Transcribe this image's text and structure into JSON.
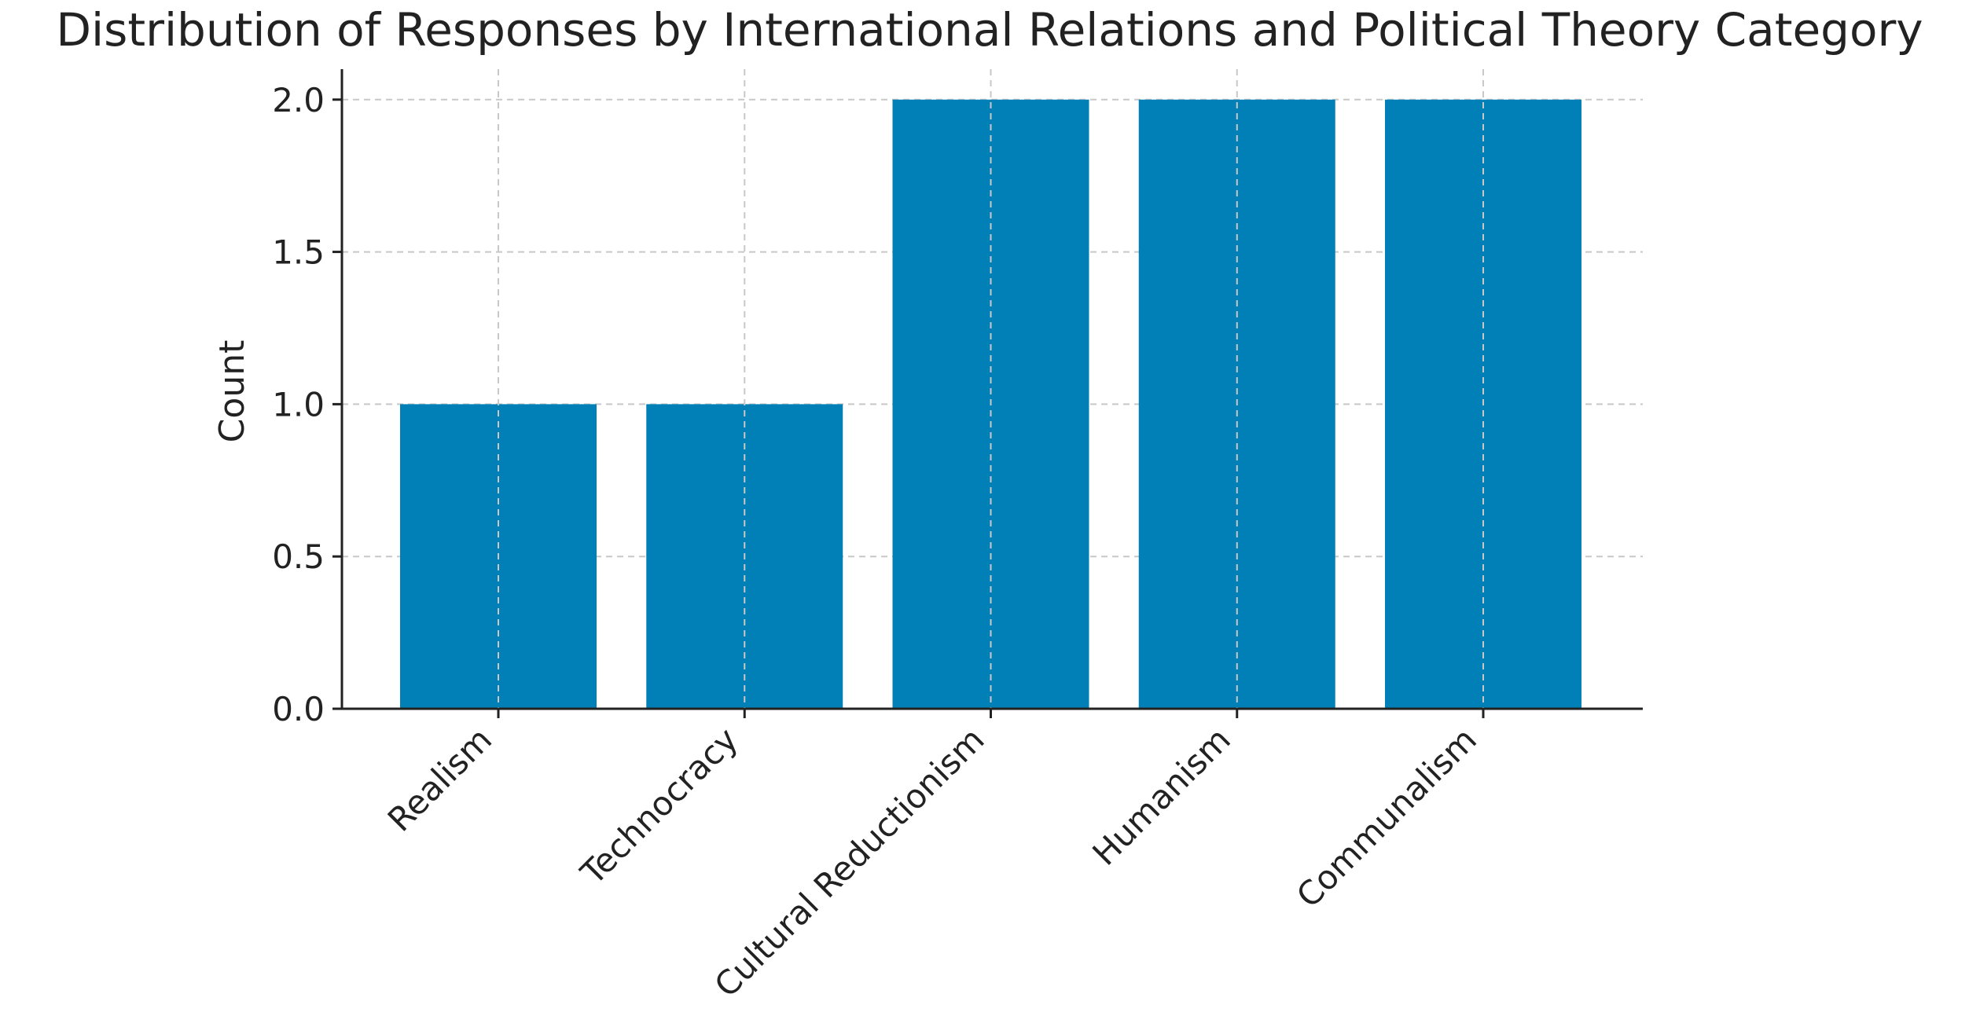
{
  "chart_data": {
    "type": "bar",
    "title": "Distribution of Responses by International Relations and Political Theory Category",
    "xlabel": "",
    "ylabel": "Count",
    "categories": [
      "Realism",
      "Technocracy",
      "Cultural Reductionism",
      "Humanism",
      "Communalism"
    ],
    "values": [
      1,
      1,
      2,
      2,
      2
    ],
    "ylim": [
      0,
      2.1
    ],
    "yticks": [
      0.0,
      0.5,
      1.0,
      1.5,
      2.0
    ],
    "ytick_labels": [
      "0.0",
      "0.5",
      "1.0",
      "1.5",
      "2.0"
    ],
    "grid": true,
    "bar_color": "#0080b6"
  }
}
